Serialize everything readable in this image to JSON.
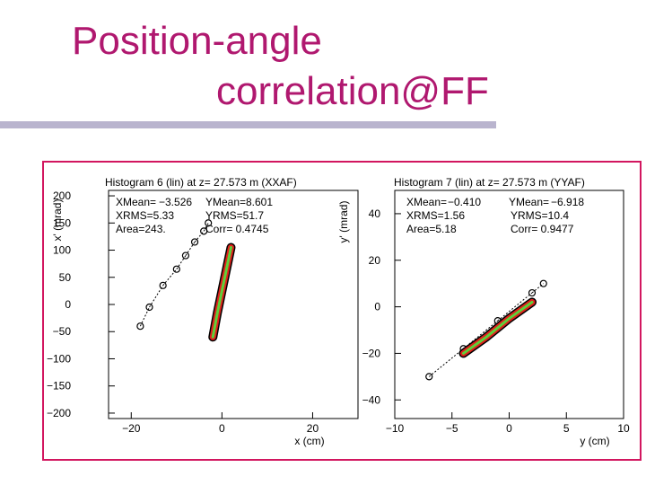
{
  "slide": {
    "title_line1": "Position-angle",
    "title_line2": "correlation@FF",
    "title_color": "#b0186f",
    "frame_color": "#d2165f",
    "divider_color": "#b9b4ce"
  },
  "chart_data": [
    {
      "type": "scatter",
      "title": "Histogram   6 (lin) at z= 27.573 m (XXAF)",
      "xlabel": "x (cm)",
      "ylabel": "x' (mrad)",
      "xlim": [
        -25,
        30
      ],
      "ylim": [
        -210,
        210
      ],
      "xticks": [
        -20,
        0,
        20
      ],
      "yticks": [
        200,
        150,
        100,
        50,
        0,
        -50,
        -100,
        -150,
        -200
      ],
      "stats": {
        "xmean_label": "XMean=",
        "xmean": "−3.526",
        "ymean_label": "YMean=",
        "ymean": "8.601",
        "xrms": "XRMS=5.33",
        "yrms": "YRMS=51.7",
        "area": "Area=243.",
        "corr": "Corr=  0.4745"
      },
      "core": {
        "x": [
          -2,
          -1,
          0,
          1,
          2
        ],
        "y": [
          -60,
          -15,
          25,
          65,
          105
        ]
      },
      "halo": {
        "x": [
          -18,
          -16,
          -13,
          -10,
          -8,
          -6,
          -4,
          -3
        ],
        "y": [
          -40,
          -5,
          35,
          65,
          90,
          115,
          135,
          150
        ]
      }
    },
    {
      "type": "scatter",
      "title": "Histogram   7 (lin) at z= 27.573 m (YYAF)",
      "xlabel": "y (cm)",
      "ylabel": "y' (mrad)",
      "xlim": [
        -10,
        10
      ],
      "ylim": [
        -48,
        50
      ],
      "xticks": [
        -10,
        -5,
        0,
        5,
        10
      ],
      "yticks": [
        40,
        20,
        0,
        -20,
        -40
      ],
      "stats": {
        "xmean_label": "XMean=",
        "xmean": "−0.410",
        "ymean_label": "YMean=",
        "ymean": "−6.918",
        "xrms": "XRMS=1.56",
        "yrms": "YRMS=10.4",
        "area": "Area=5.18",
        "corr": "Corr=  0.9477"
      },
      "core": {
        "x": [
          -4,
          -2,
          0,
          2
        ],
        "y": [
          -20,
          -13,
          -5,
          2
        ]
      },
      "halo": {
        "x": [
          -7,
          -4,
          -1,
          2,
          3
        ],
        "y": [
          -30,
          -18,
          -6,
          6,
          10
        ]
      }
    }
  ]
}
